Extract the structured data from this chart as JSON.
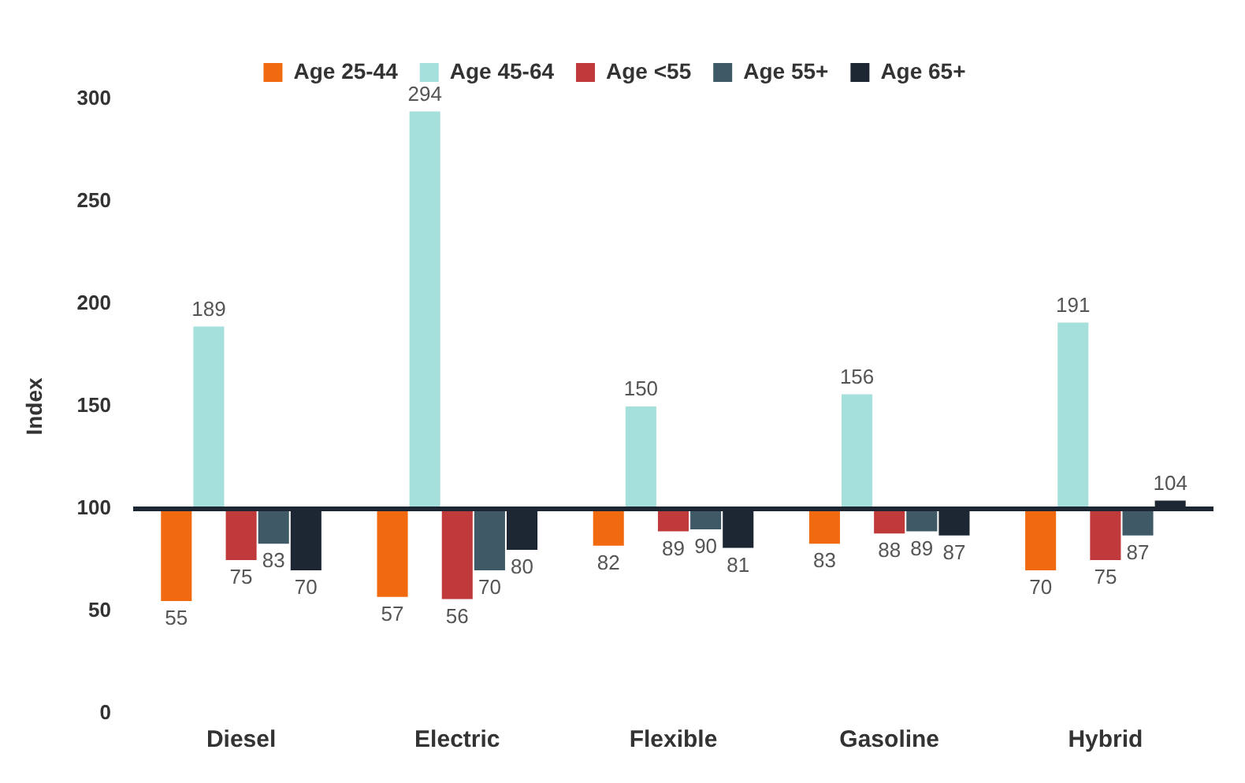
{
  "chart_data": {
    "type": "bar",
    "ylabel": "Index",
    "categories": [
      "Diesel",
      "Electric",
      "Flexible",
      "Gasoline",
      "Hybrid"
    ],
    "series": [
      {
        "name": "Age 25-44",
        "color": "#f26a0f",
        "base": [
          100,
          100,
          100,
          100,
          100
        ],
        "values": [
          -45,
          -43,
          -18,
          -17,
          -30
        ],
        "value_labels": [
          "55",
          "57",
          "82",
          "83",
          "70"
        ]
      },
      {
        "name": "Age 45-64",
        "color": "#a5e0dc",
        "base": [
          100,
          100,
          100,
          100,
          100
        ],
        "values": [
          89,
          194,
          50,
          56,
          91
        ],
        "value_labels": [
          "189",
          "294",
          "150",
          "156",
          "191"
        ]
      },
      {
        "name": "Age <55",
        "color": "#c0393b",
        "base": [
          100,
          100,
          100,
          100,
          100
        ],
        "values": [
          -25,
          -44,
          -11,
          -12,
          -25
        ],
        "value_labels": [
          "75",
          "56",
          "89",
          "88",
          "75"
        ]
      },
      {
        "name": "Age 55+",
        "color": "#3f5a66",
        "base": [
          100,
          100,
          100,
          100,
          100
        ],
        "values": [
          -17,
          -30,
          -10,
          -11,
          -13
        ],
        "value_labels": [
          "83",
          "70",
          "90",
          "89",
          "87"
        ]
      },
      {
        "name": "Age 65+",
        "color": "#1c2733",
        "base": [
          100,
          100,
          100,
          100,
          100
        ],
        "values": [
          -30,
          -20,
          -19,
          -13,
          4
        ],
        "value_labels": [
          "70",
          "80",
          "81",
          "87",
          "104"
        ]
      }
    ],
    "ref_lines": [
      {
        "axis": "y",
        "value": 100,
        "color": "#1c2733"
      }
    ],
    "ylim": [
      0,
      300
    ],
    "yticks": [
      0,
      50,
      100,
      150,
      200,
      250,
      300
    ],
    "grid": false,
    "legend": "top"
  }
}
